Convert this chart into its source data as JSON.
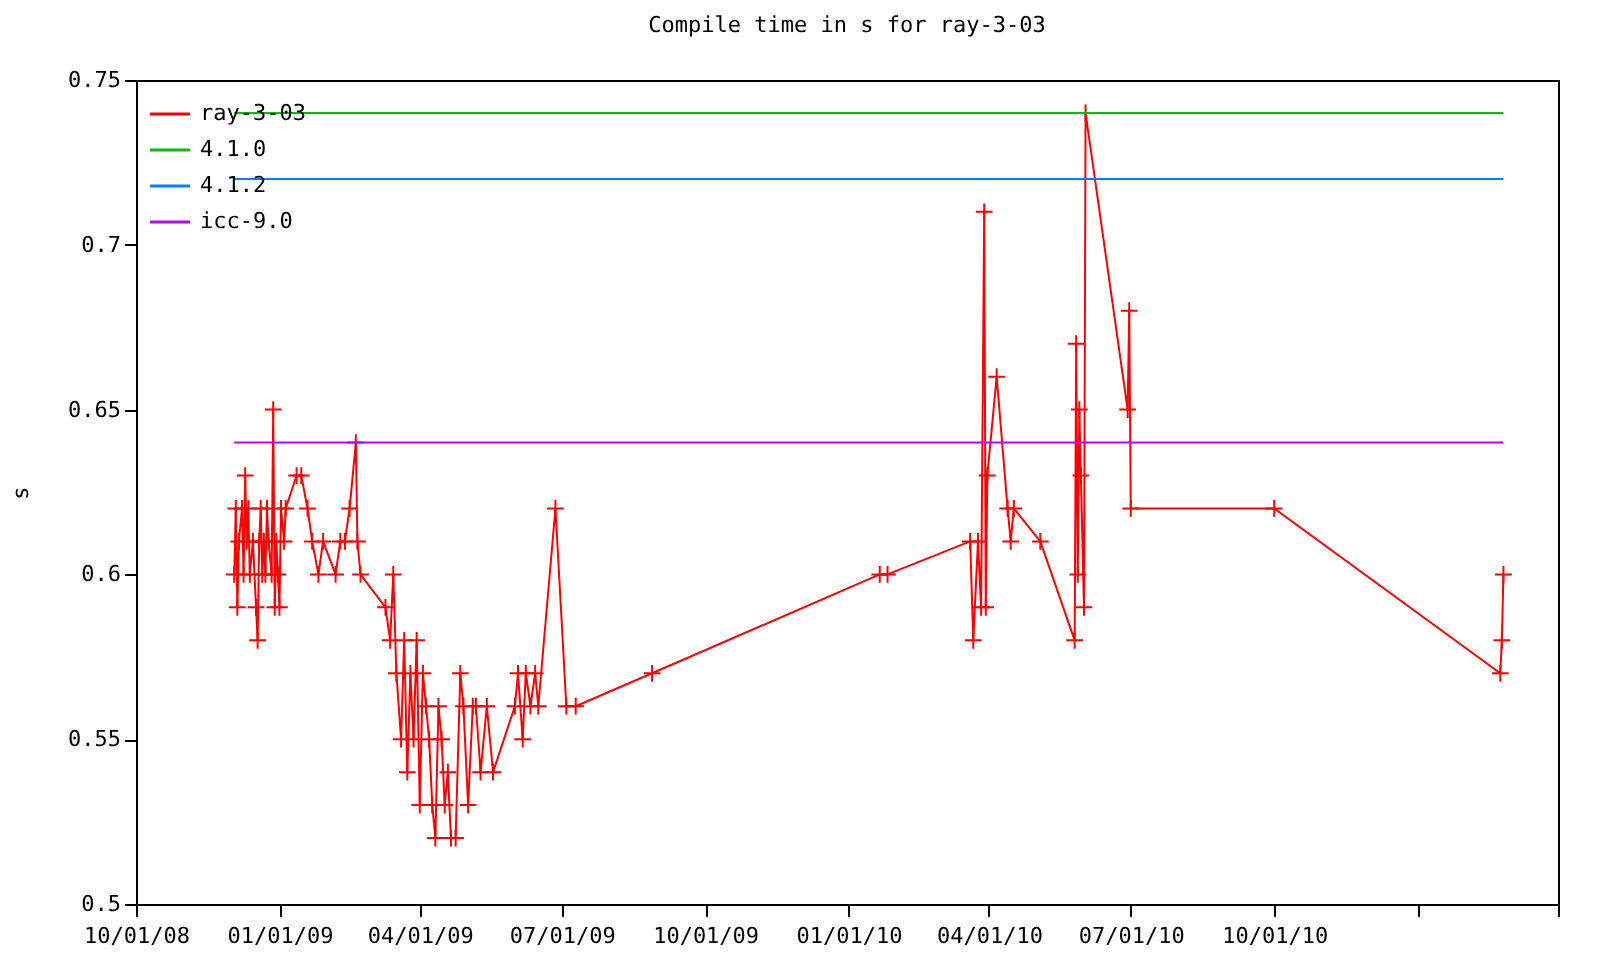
{
  "chart_data": {
    "type": "line",
    "title": "Compile time in s for ray-3-03",
    "ylabel": "s",
    "legend": "top left",
    "marker": "cross",
    "grid": false,
    "xlim": [
      "2008-10-01",
      "2011-04-01"
    ],
    "xticks": [
      {
        "value": "2008-10-01",
        "label": "10/01/08"
      },
      {
        "value": "2009-01-01",
        "label": "01/01/09"
      },
      {
        "value": "2009-04-01",
        "label": "04/01/09"
      },
      {
        "value": "2009-07-01",
        "label": "07/01/09"
      },
      {
        "value": "2009-10-01",
        "label": "10/01/09"
      },
      {
        "value": "2010-01-01",
        "label": "01/01/10"
      },
      {
        "value": "2010-04-01",
        "label": "04/01/10"
      },
      {
        "value": "2010-07-01",
        "label": "07/01/10"
      },
      {
        "value": "2010-10-01",
        "label": "10/01/10"
      },
      {
        "value": "2011-01-01",
        "label": null
      },
      {
        "value": "2011-04-01",
        "label": null
      }
    ],
    "ylim": [
      0.5,
      0.75
    ],
    "yticks": [
      0.5,
      0.55,
      0.6,
      0.65,
      0.7,
      0.75
    ],
    "series": [
      {
        "name": "ray-3-03",
        "color": "#ff0000",
        "x": [
          "2008-12-03",
          "2008-12-04",
          "2008-12-05",
          "2008-12-06",
          "2008-12-08",
          "2008-12-09",
          "2008-12-10",
          "2008-12-11",
          "2008-12-12",
          "2008-12-13",
          "2008-12-15",
          "2008-12-17",
          "2008-12-18",
          "2008-12-19",
          "2008-12-20",
          "2008-12-21",
          "2008-12-22",
          "2008-12-23",
          "2008-12-24",
          "2008-12-25",
          "2008-12-27",
          "2008-12-28",
          "2008-12-29",
          "2008-12-30",
          "2008-12-31",
          "2009-01-01",
          "2009-01-02",
          "2009-01-04",
          "2009-01-05",
          "2009-01-12",
          "2009-01-15",
          "2009-01-19",
          "2009-01-22",
          "2009-01-26",
          "2009-01-29",
          "2009-02-06",
          "2009-02-09",
          "2009-02-12",
          "2009-02-15",
          "2009-02-19",
          "2009-02-20",
          "2009-02-22",
          "2009-03-10",
          "2009-03-13",
          "2009-03-15",
          "2009-03-17",
          "2009-03-20",
          "2009-03-22",
          "2009-03-24",
          "2009-03-26",
          "2009-03-28",
          "2009-03-30",
          "2009-04-01",
          "2009-04-03",
          "2009-04-05",
          "2009-04-07",
          "2009-04-09",
          "2009-04-11",
          "2009-04-13",
          "2009-04-15",
          "2009-04-17",
          "2009-04-19",
          "2009-04-21",
          "2009-04-24",
          "2009-04-27",
          "2009-04-29",
          "2009-05-02",
          "2009-05-05",
          "2009-05-07",
          "2009-05-10",
          "2009-05-14",
          "2009-05-18",
          "2009-06-01",
          "2009-06-03",
          "2009-06-06",
          "2009-06-08",
          "2009-06-11",
          "2009-06-14",
          "2009-06-16",
          "2009-06-27",
          "2009-07-04",
          "2009-07-10",
          "2009-08-28",
          "2010-01-21",
          "2010-01-26",
          "2010-03-20",
          "2010-03-22",
          "2010-03-25",
          "2010-03-27",
          "2010-03-29",
          "2010-03-30",
          "2010-03-31",
          "2010-04-06",
          "2010-04-13",
          "2010-04-15",
          "2010-04-17",
          "2010-05-04",
          "2010-05-26",
          "2010-05-27",
          "2010-05-28",
          "2010-05-29",
          "2010-05-30",
          "2010-06-01",
          "2010-06-02",
          "2010-06-29",
          "2010-06-30",
          "2010-07-01",
          "2010-10-01",
          "2011-02-23",
          "2011-02-24",
          "2011-02-25"
        ],
        "values": [
          0.6,
          0.62,
          0.59,
          0.61,
          0.62,
          0.6,
          0.63,
          0.61,
          0.62,
          0.6,
          0.61,
          0.59,
          0.58,
          0.61,
          0.62,
          0.6,
          0.61,
          0.6,
          0.62,
          0.61,
          0.6,
          0.65,
          0.59,
          0.61,
          0.6,
          0.59,
          0.62,
          0.61,
          0.62,
          0.63,
          0.63,
          0.62,
          0.61,
          0.6,
          0.61,
          0.6,
          0.61,
          0.61,
          0.62,
          0.64,
          0.61,
          0.6,
          0.59,
          0.58,
          0.6,
          0.57,
          0.55,
          0.58,
          0.54,
          0.57,
          0.55,
          0.58,
          0.53,
          0.57,
          0.56,
          0.55,
          0.53,
          0.52,
          0.56,
          0.55,
          0.53,
          0.54,
          0.52,
          0.52,
          0.57,
          0.56,
          0.53,
          0.56,
          0.56,
          0.54,
          0.56,
          0.54,
          0.56,
          0.57,
          0.55,
          0.57,
          0.56,
          0.57,
          0.56,
          0.62,
          0.56,
          0.56,
          0.57,
          0.6,
          0.6,
          0.61,
          0.58,
          0.61,
          0.59,
          0.71,
          0.59,
          0.63,
          0.66,
          0.62,
          0.61,
          0.62,
          0.61,
          0.58,
          0.67,
          0.6,
          0.65,
          0.63,
          0.59,
          0.74,
          0.65,
          0.68,
          0.62,
          0.62,
          0.57,
          0.58,
          0.6
        ]
      },
      {
        "name": "4.1.0",
        "type": "line",
        "marker": "none",
        "color": "#00c000",
        "x": [
          "2008-12-03",
          "2011-02-25"
        ],
        "values": [
          0.74,
          0.74
        ]
      },
      {
        "name": "4.1.2",
        "type": "line",
        "marker": "none",
        "color": "#0080ff",
        "x": [
          "2008-12-03",
          "2011-02-25"
        ],
        "values": [
          0.72,
          0.72
        ]
      },
      {
        "name": "icc-9.0",
        "type": "line",
        "marker": "none",
        "color": "#c000ff",
        "x": [
          "2008-12-03",
          "2011-02-25"
        ],
        "values": [
          0.64,
          0.64
        ]
      }
    ]
  }
}
